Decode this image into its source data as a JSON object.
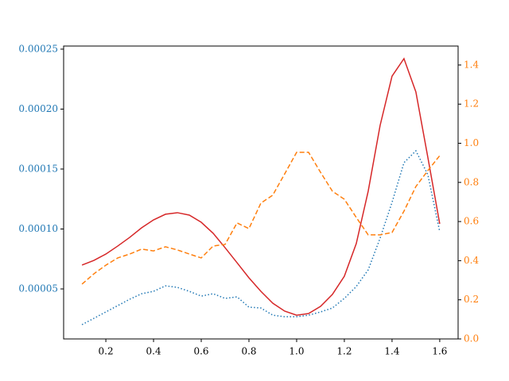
{
  "chart_data": {
    "type": "line",
    "x": [
      0.1,
      0.15,
      0.2,
      0.25,
      0.3,
      0.35,
      0.4,
      0.45,
      0.5,
      0.55,
      0.6,
      0.65,
      0.7,
      0.75,
      0.8,
      0.85,
      0.9,
      0.95,
      1.0,
      1.05,
      1.1,
      1.15,
      1.2,
      1.25,
      1.3,
      1.35,
      1.4,
      1.45,
      1.5,
      1.55,
      1.6
    ],
    "xlim": [
      0.023,
      1.677
    ],
    "xticks": [
      0.2,
      0.4,
      0.6,
      0.8,
      {
        "value": 1.0,
        "label": "1.0"
      },
      1.2,
      1.4,
      1.6
    ],
    "ylim": [
      8.3e-06,
      0.0002526
    ],
    "yticks": [
      5e-05,
      {
        "value": 0.0001,
        "label": "0.00010"
      },
      0.00015,
      {
        "value": 0.0002,
        "label": "0.00020"
      },
      0.00025
    ],
    "ytick_color": "#1f77b4",
    "y2lim": [
      0,
      1.497
    ],
    "y2ticks": [
      {
        "value": 0,
        "label": "0.0"
      },
      0.2,
      0.4,
      0.6,
      0.8,
      {
        "value": 1.0,
        "label": "1.0"
      },
      1.2,
      1.4
    ],
    "y2tick_color": "#ff7f0e",
    "series": [
      {
        "color": "#d62728",
        "dash": "solid",
        "values": [
          6.99e-05,
          7.38e-05,
          7.91e-05,
          8.58e-05,
          9.3e-05,
          0.000101,
          0.0001076,
          0.0001123,
          0.0001136,
          0.0001116,
          0.0001056,
          9.64e-05,
          8.44e-05,
          7.19e-05,
          5.93e-05,
          4.8e-05,
          3.81e-05,
          3.15e-05,
          2.81e-05,
          2.95e-05,
          3.54e-05,
          4.54e-05,
          6.06e-05,
          8.78e-05,
          0.0001315,
          0.0001864,
          0.0002275,
          0.0002421,
          0.0002143,
          0.0001599,
          0.0001043
        ]
      },
      {
        "color": "#1f77b4",
        "dash": "dotted",
        "values": [
          2.02e-05,
          2.55e-05,
          3.08e-05,
          3.61e-05,
          4.14e-05,
          4.6e-05,
          4.8e-05,
          5.26e-05,
          5.13e-05,
          4.8e-05,
          4.4e-05,
          4.6e-05,
          4.21e-05,
          4.34e-05,
          3.48e-05,
          3.41e-05,
          2.81e-05,
          2.68e-05,
          2.68e-05,
          2.81e-05,
          3.08e-05,
          3.41e-05,
          4.21e-05,
          5.2e-05,
          6.59e-05,
          9.24e-05,
          0.0001222,
          0.0001553,
          0.0001652,
          0.0001454,
          9.77e-05
        ]
      },
      {
        "color": "#ff7f0e",
        "dash": "dashed",
        "axis": "y2",
        "values": [
          0.28,
          0.333,
          0.377,
          0.414,
          0.434,
          0.459,
          0.45,
          0.471,
          0.455,
          0.434,
          0.414,
          0.475,
          0.483,
          0.593,
          0.564,
          0.694,
          0.735,
          0.844,
          0.954,
          0.954,
          0.852,
          0.755,
          0.714,
          0.621,
          0.532,
          0.532,
          0.544,
          0.653,
          0.779,
          0.86,
          0.937
        ]
      }
    ]
  }
}
